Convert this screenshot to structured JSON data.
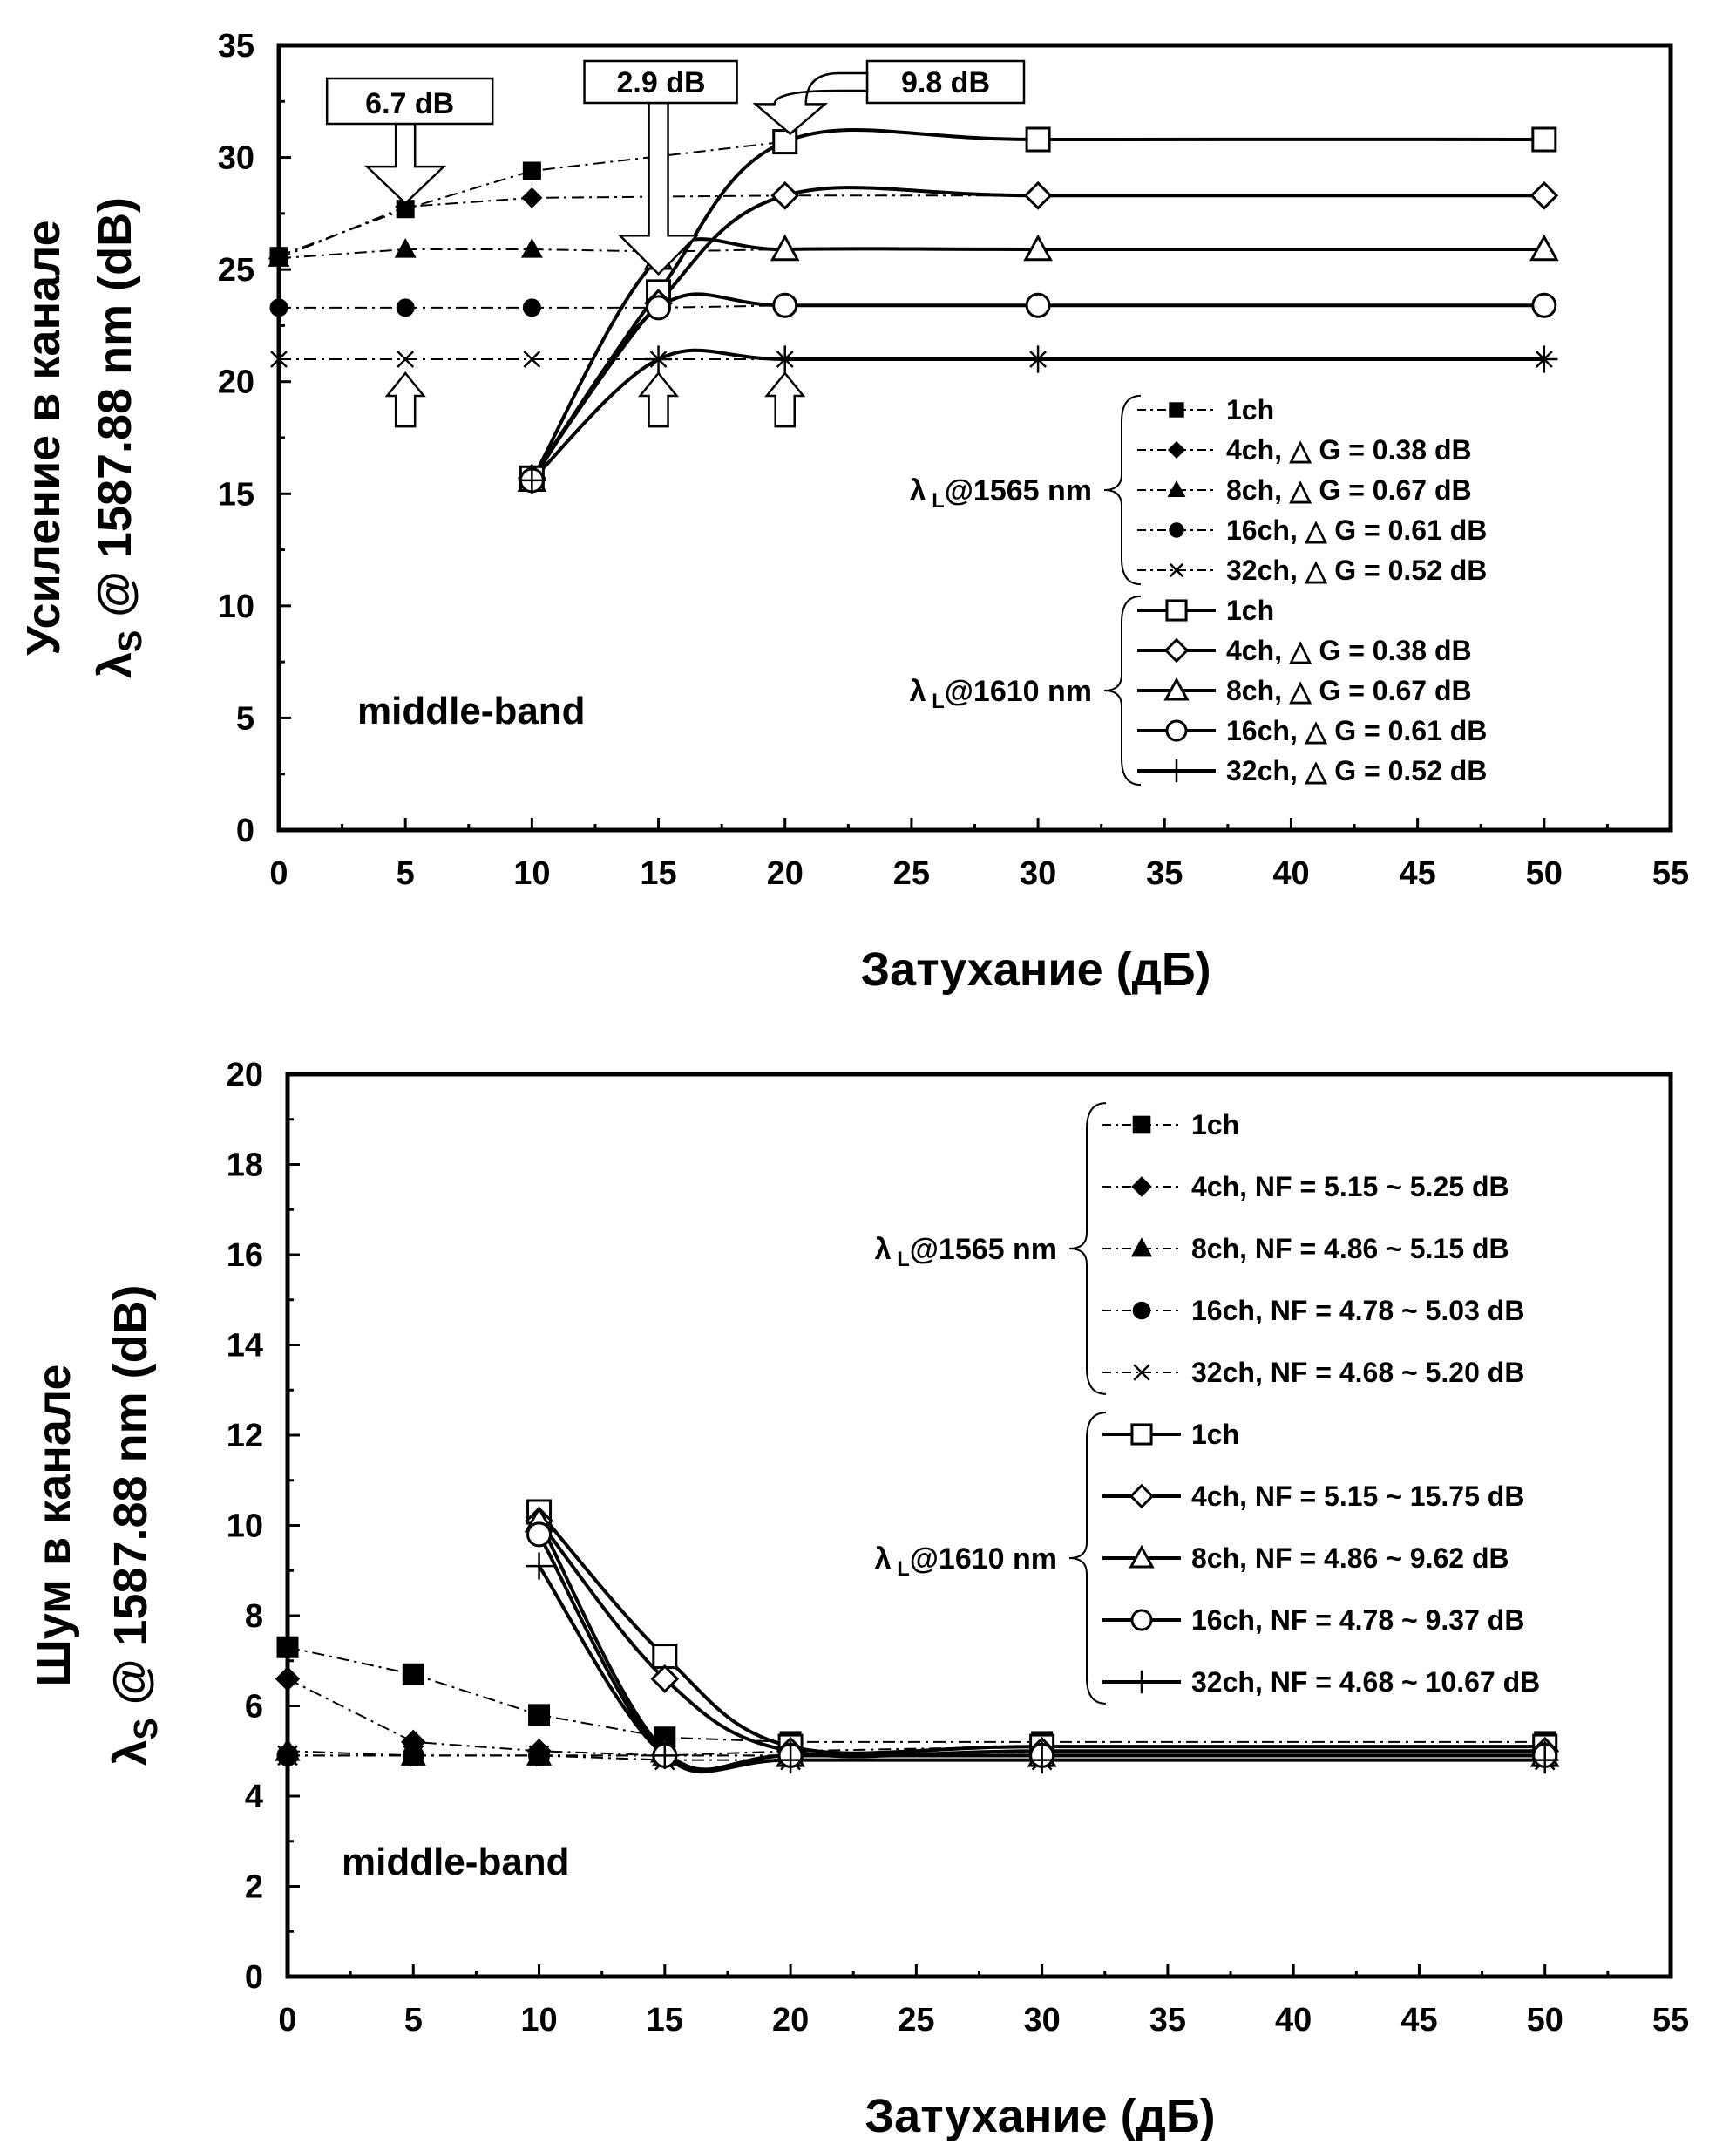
{
  "chart_data": [
    {
      "type": "line",
      "xlabel": "Затухание (дБ)",
      "ylabel_line1": "Усиление в канале",
      "ylabel_line2": "λ",
      "ylabel_sub": "S",
      "ylabel_line2_rest": " @ 1587.88 nm (dB)",
      "xlim": [
        0,
        55
      ],
      "ylim": [
        0,
        35
      ],
      "xticks": [
        "0",
        "5",
        "10",
        "15",
        "20",
        "25",
        "30",
        "35",
        "40",
        "45",
        "50",
        "55"
      ],
      "yticks": [
        "0",
        "5",
        "10",
        "15",
        "20",
        "25",
        "30",
        "35"
      ],
      "band_label": "middle-band",
      "group_labels": [
        {
          "lambda": "λ",
          "sub": "L",
          "rest": "@1565 nm"
        },
        {
          "lambda": "λ",
          "sub": "L",
          "rest": "@1610 nm"
        }
      ],
      "callouts": [
        "6.7 dB",
        "2.9 dB",
        "9.8 dB"
      ],
      "series": [
        {
          "name": "1ch",
          "group": 0,
          "marker": "square-filled",
          "style": "dashdot",
          "x": [
            0,
            5,
            10,
            20
          ],
          "y": [
            25.6,
            27.7,
            29.4,
            30.7
          ]
        },
        {
          "name": "4ch, △ G = 0.38 dB",
          "group": 0,
          "marker": "diamond-filled",
          "style": "dashdot",
          "x": [
            0,
            5,
            10,
            20,
            30,
            50
          ],
          "y": [
            25.5,
            27.8,
            28.2,
            28.3,
            28.3,
            28.3
          ]
        },
        {
          "name": "8ch, △ G = 0.67 dB",
          "group": 0,
          "marker": "triangle-filled",
          "style": "dashdot",
          "x": [
            0,
            5,
            10,
            15,
            20,
            30,
            50
          ],
          "y": [
            25.5,
            25.9,
            25.9,
            25.8,
            25.9,
            25.9,
            25.9
          ]
        },
        {
          "name": "16ch, △ G = 0.61 dB",
          "group": 0,
          "marker": "circle-filled",
          "style": "dashdot",
          "x": [
            0,
            5,
            10,
            15,
            20,
            30,
            50
          ],
          "y": [
            23.3,
            23.3,
            23.3,
            23.3,
            23.4,
            23.4,
            23.4
          ]
        },
        {
          "name": "32ch, △ G = 0.52 dB",
          "group": 0,
          "marker": "x",
          "style": "dashdot",
          "x": [
            0,
            5,
            10,
            15,
            20,
            30,
            50
          ],
          "y": [
            21.0,
            21.0,
            21.0,
            21.0,
            21.0,
            21.0,
            21.0
          ]
        },
        {
          "name": "1ch",
          "group": 1,
          "marker": "square-open",
          "style": "solid",
          "x": [
            10,
            15,
            20,
            30,
            50
          ],
          "y": [
            15.7,
            24.0,
            30.7,
            30.8,
            30.8
          ]
        },
        {
          "name": "4ch, △ G = 0.38 dB",
          "group": 1,
          "marker": "diamond-open",
          "style": "solid",
          "x": [
            10,
            15,
            20,
            30,
            50
          ],
          "y": [
            15.7,
            23.5,
            28.3,
            28.3,
            28.3
          ]
        },
        {
          "name": "8ch, △ G = 0.67 dB",
          "group": 1,
          "marker": "triangle-open",
          "style": "solid",
          "x": [
            10,
            15,
            20,
            30,
            50
          ],
          "y": [
            15.6,
            25.5,
            25.9,
            25.9,
            25.9
          ]
        },
        {
          "name": "16ch, △ G = 0.61 dB",
          "group": 1,
          "marker": "circle-open",
          "style": "solid",
          "x": [
            10,
            15,
            20,
            30,
            50
          ],
          "y": [
            15.6,
            23.3,
            23.4,
            23.4,
            23.4
          ]
        },
        {
          "name": "32ch, △ G = 0.52 dB",
          "group": 1,
          "marker": "plus",
          "style": "solid",
          "x": [
            10,
            15,
            20,
            30,
            50
          ],
          "y": [
            15.6,
            21.0,
            21.0,
            21.0,
            21.0
          ]
        }
      ]
    },
    {
      "type": "line",
      "xlabel": "Затухание (дБ)",
      "ylabel_line1": "Шум в канале",
      "ylabel_line2": "λ",
      "ylabel_sub": "S",
      "ylabel_line2_rest": " @ 1587.88 nm (dB)",
      "xlim": [
        0,
        55
      ],
      "ylim": [
        0,
        20
      ],
      "xticks": [
        "0",
        "5",
        "10",
        "15",
        "20",
        "25",
        "30",
        "35",
        "40",
        "45",
        "50",
        "55"
      ],
      "yticks": [
        "0",
        "2",
        "4",
        "6",
        "8",
        "10",
        "12",
        "14",
        "16",
        "18",
        "20"
      ],
      "band_label": "middle-band",
      "group_labels": [
        {
          "lambda": "λ",
          "sub": "L",
          "rest": "@1565 nm"
        },
        {
          "lambda": "λ",
          "sub": "L",
          "rest": "@1610 nm"
        }
      ],
      "series": [
        {
          "name": "1ch",
          "group": 0,
          "marker": "square-filled",
          "style": "dashdot",
          "x": [
            0,
            5,
            10,
            15,
            20,
            30,
            50
          ],
          "y": [
            7.3,
            6.7,
            5.8,
            5.3,
            5.2,
            5.2,
            5.2
          ]
        },
        {
          "name": "4ch, NF = 5.15 ~ 5.25 dB",
          "group": 0,
          "marker": "diamond-filled",
          "style": "dashdot",
          "x": [
            0,
            5,
            10,
            15,
            20,
            30,
            50
          ],
          "y": [
            6.6,
            5.2,
            5.0,
            4.9,
            5.0,
            5.1,
            5.1
          ]
        },
        {
          "name": "8ch, NF = 4.86 ~ 5.15 dB",
          "group": 0,
          "marker": "triangle-filled",
          "style": "dashdot",
          "x": [
            0,
            5,
            10,
            15,
            20,
            30,
            50
          ],
          "y": [
            5.0,
            4.9,
            4.9,
            4.9,
            4.9,
            5.0,
            5.0
          ]
        },
        {
          "name": "16ch, NF = 4.78 ~ 5.03 dB",
          "group": 0,
          "marker": "circle-filled",
          "style": "dashdot",
          "x": [
            0,
            5,
            10,
            15,
            20,
            30,
            50
          ],
          "y": [
            4.9,
            4.9,
            4.9,
            4.9,
            4.9,
            4.9,
            4.9
          ]
        },
        {
          "name": "32ch, NF = 4.68 ~ 5.20 dB",
          "group": 0,
          "marker": "x",
          "style": "dashdot",
          "x": [
            0,
            5,
            10,
            15,
            20,
            30,
            50
          ],
          "y": [
            4.9,
            4.9,
            4.9,
            4.8,
            4.8,
            4.8,
            4.8
          ]
        },
        {
          "name": "1ch",
          "group": 1,
          "marker": "square-open",
          "style": "solid",
          "x": [
            10,
            15,
            20,
            30,
            50
          ],
          "y": [
            10.3,
            7.1,
            5.1,
            5.1,
            5.1
          ]
        },
        {
          "name": "4ch, NF = 5.15 ~ 15.75 dB",
          "group": 1,
          "marker": "diamond-open",
          "style": "solid",
          "x": [
            10,
            15,
            20,
            30,
            50
          ],
          "y": [
            10.1,
            6.6,
            5.0,
            5.0,
            5.0
          ]
        },
        {
          "name": "8ch, NF = 4.86 ~ 9.62 dB",
          "group": 1,
          "marker": "triangle-open",
          "style": "solid",
          "x": [
            10,
            15,
            20,
            30,
            50
          ],
          "y": [
            10.1,
            5.0,
            4.9,
            4.9,
            4.9
          ]
        },
        {
          "name": "16ch, NF = 4.78 ~ 9.37 dB",
          "group": 1,
          "marker": "circle-open",
          "style": "solid",
          "x": [
            10,
            15,
            20,
            30,
            50
          ],
          "y": [
            9.8,
            4.9,
            4.9,
            4.9,
            4.9
          ]
        },
        {
          "name": "32ch, NF = 4.68 ~ 10.67 dB",
          "group": 1,
          "marker": "plus",
          "style": "solid",
          "x": [
            10,
            15,
            20,
            30,
            50
          ],
          "y": [
            9.1,
            4.9,
            4.8,
            4.8,
            4.8
          ]
        }
      ]
    }
  ]
}
